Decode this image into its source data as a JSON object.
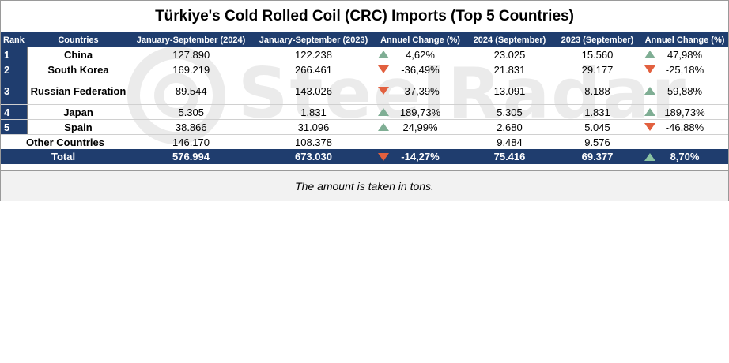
{
  "title": "Türkiye's Cold Rolled Coil (CRC) Imports (Top 5 Countries)",
  "watermark": "SteelRadar",
  "colors": {
    "header_bg": "#1f3d6e",
    "arrow_up": "#7fae94",
    "arrow_down": "#e2603f"
  },
  "columns": [
    "Rank",
    "Countries",
    "January-September (2024)",
    "January-September (2023)",
    "Annuel Change (%)",
    "2024 (September)",
    "2023 (September)",
    "Annuel Change (%)"
  ],
  "rows": [
    {
      "rank": "1",
      "country": "China",
      "ytd2024": "127.890",
      "ytd2023": "122.238",
      "ytd_trend": "up",
      "ytd_change": "4,62%",
      "sep2024": "23.025",
      "sep2023": "15.560",
      "sep_trend": "up",
      "sep_change": "47,98%"
    },
    {
      "rank": "2",
      "country": "South Korea",
      "ytd2024": "169.219",
      "ytd2023": "266.461",
      "ytd_trend": "down",
      "ytd_change": "-36,49%",
      "sep2024": "21.831",
      "sep2023": "29.177",
      "sep_trend": "down",
      "sep_change": "-25,18%"
    },
    {
      "rank": "3",
      "country": "Russian Federation",
      "ytd2024": "89.544",
      "ytd2023": "143.026",
      "ytd_trend": "down",
      "ytd_change": "-37,39%",
      "sep2024": "13.091",
      "sep2023": "8.188",
      "sep_trend": "up",
      "sep_change": "59,88%"
    },
    {
      "rank": "4",
      "country": "Japan",
      "ytd2024": "5.305",
      "ytd2023": "1.831",
      "ytd_trend": "up",
      "ytd_change": "189,73%",
      "sep2024": "5.305",
      "sep2023": "1.831",
      "sep_trend": "up",
      "sep_change": "189,73%"
    },
    {
      "rank": "5",
      "country": "Spain",
      "ytd2024": "38.866",
      "ytd2023": "31.096",
      "ytd_trend": "up",
      "ytd_change": "24,99%",
      "sep2024": "2.680",
      "sep2023": "5.045",
      "sep_trend": "down",
      "sep_change": "-46,88%"
    }
  ],
  "other": {
    "label": "Other Countries",
    "ytd2024": "146.170",
    "ytd2023": "108.378",
    "sep2024": "9.484",
    "sep2023": "9.576"
  },
  "total": {
    "label": "Total",
    "ytd2024": "576.994",
    "ytd2023": "673.030",
    "ytd_trend": "down",
    "ytd_change": "-14,27%",
    "sep2024": "75.416",
    "sep2023": "69.377",
    "sep_trend": "up",
    "sep_change": "8,70%"
  },
  "note": "The amount is taken in tons."
}
